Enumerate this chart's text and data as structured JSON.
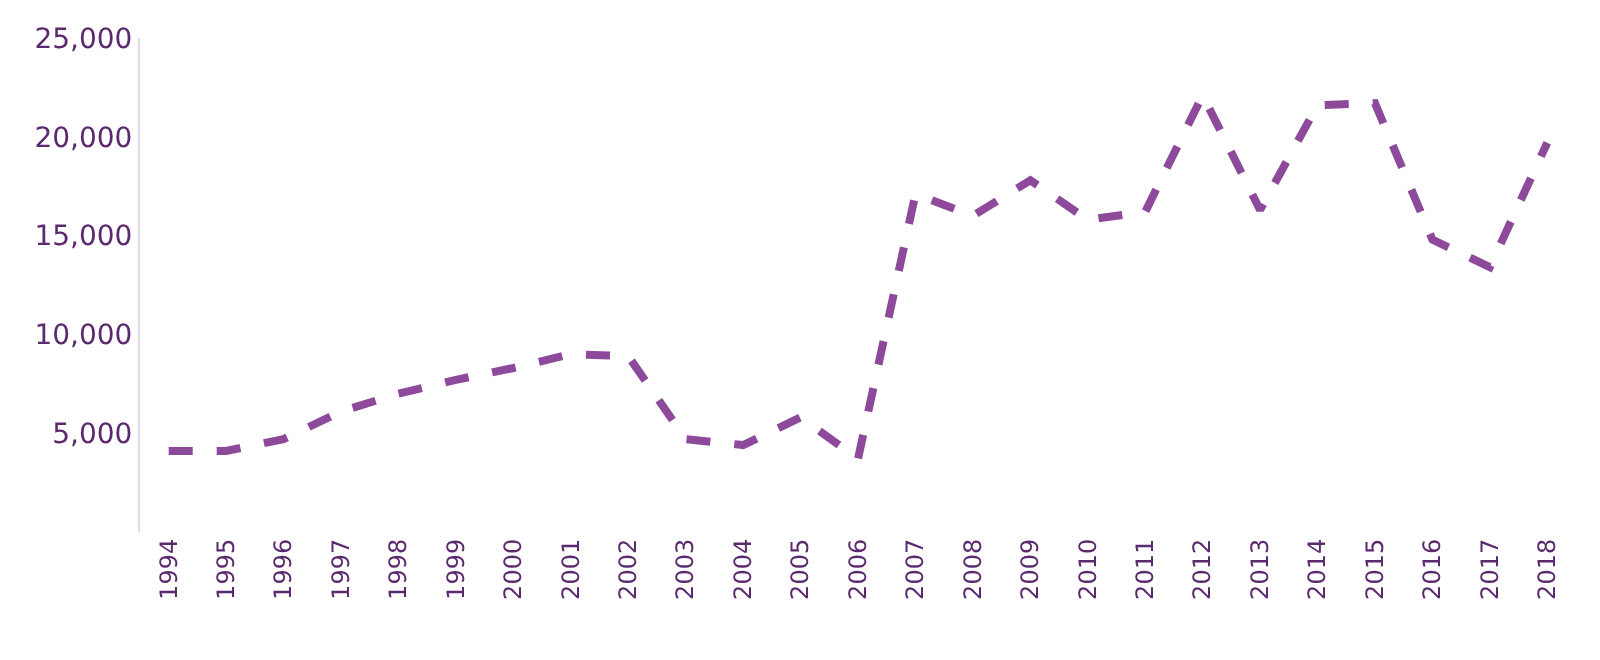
{
  "chart_data": {
    "type": "line",
    "categories": [
      "1994",
      "1995",
      "1996",
      "1997",
      "1998",
      "1999",
      "2000",
      "2001",
      "2002",
      "2003",
      "2004",
      "2005",
      "2006",
      "2007",
      "2008",
      "2009",
      "2010",
      "2011",
      "2012",
      "2013",
      "2014",
      "2015",
      "2016",
      "2017",
      "2018"
    ],
    "series": [
      {
        "color": "#8e4a9a",
        "values": [
          4100,
          4100,
          4700,
          6100,
          7000,
          7700,
          8300,
          9000,
          8900,
          4700,
          4400,
          5800,
          3700,
          17100,
          16000,
          17800,
          15800,
          16200,
          22100,
          16300,
          21600,
          21700,
          14800,
          13400,
          19700
        ]
      }
    ],
    "ylim": [
      0,
      25000
    ],
    "yticks": [
      {
        "value": 5000,
        "label": "5,000"
      },
      {
        "value": 10000,
        "label": "10,000"
      },
      {
        "value": 15000,
        "label": "15,000"
      },
      {
        "value": 20000,
        "label": "20,000"
      },
      {
        "value": 25000,
        "label": "25,000"
      }
    ],
    "marker": "none",
    "line_style": "dashed"
  }
}
